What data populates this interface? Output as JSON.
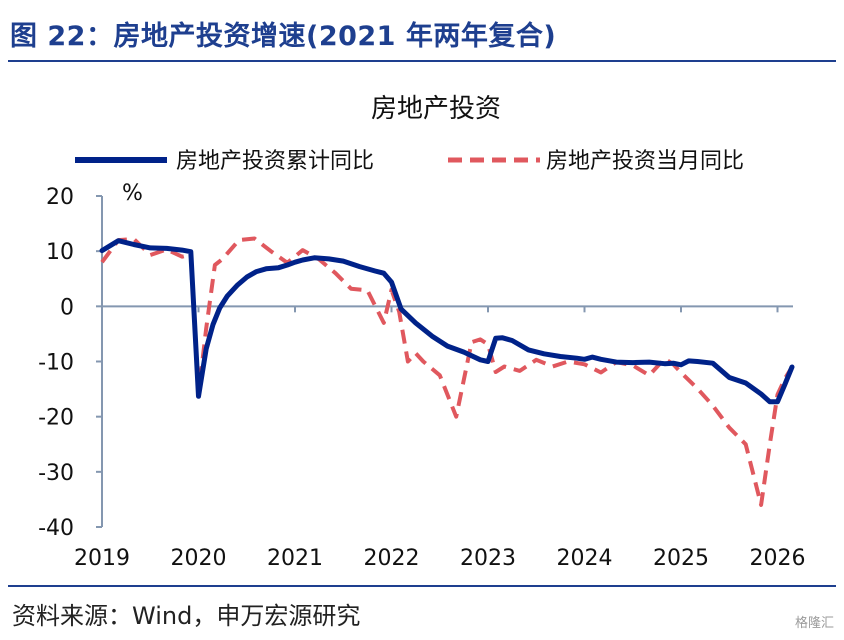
{
  "figure_title": "图 22：房地产投资增速(2021 年两年复合)",
  "source": "资料来源：Wind，申万宏源研究",
  "watermark": "格隆汇",
  "chart_data": {
    "type": "line",
    "title": "房地产投资",
    "ylabel": "%",
    "xlabel": "",
    "ylim": [
      -40,
      20
    ],
    "yticks": [
      20,
      10,
      0,
      -10,
      -20,
      -30,
      -40
    ],
    "xlim": [
      2019,
      2026
    ],
    "xticks": [
      "2019",
      "2020",
      "2021",
      "2022",
      "2023",
      "2024",
      "2025",
      "2026"
    ],
    "grid": false,
    "legend_position": "top",
    "series": [
      {
        "name": "房地产投资累计同比",
        "color": "#002289",
        "style": "solid",
        "x": [
          2019.0,
          2019.17,
          2019.33,
          2019.5,
          2019.67,
          2019.83,
          2019.92,
          2020.0,
          2020.08,
          2020.15,
          2020.22,
          2020.3,
          2020.4,
          2020.5,
          2020.6,
          2020.7,
          2020.83,
          2020.92,
          2021.0,
          2021.08,
          2021.2,
          2021.35,
          2021.5,
          2021.67,
          2021.83,
          2021.92,
          2022.0,
          2022.1,
          2022.25,
          2022.42,
          2022.58,
          2022.75,
          2022.92,
          2023.0,
          2023.08,
          2023.15,
          2023.25,
          2023.42,
          2023.58,
          2023.75,
          2023.92,
          2024.0,
          2024.08,
          2024.17,
          2024.33,
          2024.5,
          2024.67,
          2024.83,
          2024.92,
          2025.0,
          2025.08,
          2025.17,
          2025.33,
          2025.5,
          2025.67,
          2025.83,
          2025.92,
          2026.0,
          2026.08,
          2026.15
        ],
        "values": [
          10.1,
          11.9,
          11.2,
          10.6,
          10.5,
          10.2,
          9.9,
          -16.3,
          -7.7,
          -3.3,
          -0.3,
          1.9,
          3.8,
          5.3,
          6.3,
          6.8,
          7.0,
          7.5,
          8.0,
          8.4,
          8.8,
          8.6,
          8.2,
          7.2,
          6.4,
          6.0,
          4.4,
          -0.5,
          -3.0,
          -5.4,
          -7.2,
          -8.3,
          -9.7,
          -10.0,
          -5.8,
          -5.7,
          -6.2,
          -7.9,
          -8.6,
          -9.1,
          -9.4,
          -9.6,
          -9.2,
          -9.6,
          -10.1,
          -10.2,
          -10.1,
          -10.4,
          -10.3,
          -10.6,
          -9.9,
          -10.0,
          -10.3,
          -12.9,
          -13.9,
          -15.9,
          -17.3,
          -17.3,
          -14.0,
          -11.0
        ]
      },
      {
        "name": "房地产投资当月同比",
        "color": "#e0585e",
        "style": "dashed",
        "x": [
          2019.0,
          2019.17,
          2019.33,
          2019.5,
          2019.67,
          2019.83,
          2019.92,
          2020.0,
          2020.08,
          2020.17,
          2020.25,
          2020.42,
          2020.58,
          2020.75,
          2020.92,
          2021.08,
          2021.25,
          2021.42,
          2021.58,
          2021.75,
          2021.92,
          2022.0,
          2022.08,
          2022.17,
          2022.25,
          2022.33,
          2022.5,
          2022.67,
          2022.83,
          2022.92,
          2023.0,
          2023.08,
          2023.17,
          2023.33,
          2023.5,
          2023.67,
          2023.83,
          2024.0,
          2024.17,
          2024.33,
          2024.5,
          2024.67,
          2024.83,
          2024.92,
          2025.0,
          2025.17,
          2025.33,
          2025.5,
          2025.67,
          2025.83,
          2025.92,
          2026.0,
          2026.08,
          2026.15
        ],
        "values": [
          8.0,
          12.0,
          12.2,
          9.3,
          10.3,
          9.0,
          9.4,
          -16.0,
          -4.0,
          7.5,
          8.6,
          12.0,
          12.3,
          10.0,
          7.9,
          10.2,
          8.5,
          6.0,
          3.2,
          2.9,
          -3.0,
          3.0,
          -1.0,
          -10.0,
          -8.5,
          -10.0,
          -12.5,
          -20.0,
          -6.5,
          -6.0,
          -6.9,
          -11.9,
          -10.9,
          -11.7,
          -9.7,
          -10.9,
          -10.0,
          -10.5,
          -12.0,
          -10.1,
          -10.7,
          -12.5,
          -9.5,
          -10.5,
          -12.0,
          -14.9,
          -18.0,
          -22.0,
          -25.0,
          -36.0,
          -25.0,
          -16.0,
          -13.0,
          -11.0
        ]
      }
    ]
  }
}
